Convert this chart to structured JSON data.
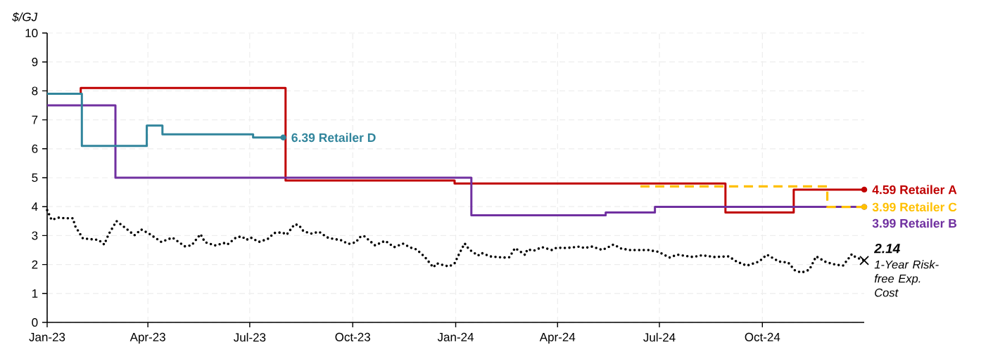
{
  "chart_data": {
    "type": "step",
    "ylabel": "$/GJ",
    "xlim": [
      "2023-01-01",
      "2024-12-31"
    ],
    "ylim": [
      0,
      10
    ],
    "xticks": [
      {
        "value": "2023-01-01",
        "label": "Jan-23"
      },
      {
        "value": "2023-04-01",
        "label": "Apr-23"
      },
      {
        "value": "2023-07-01",
        "label": "Jul-23"
      },
      {
        "value": "2023-10-01",
        "label": "Oct-23"
      },
      {
        "value": "2024-01-01",
        "label": "Jan-24"
      },
      {
        "value": "2024-04-01",
        "label": "Apr-24"
      },
      {
        "value": "2024-07-01",
        "label": "Jul-24"
      },
      {
        "value": "2024-10-01",
        "label": "Oct-24"
      }
    ],
    "yticks": [
      0,
      1,
      2,
      3,
      4,
      5,
      6,
      7,
      8,
      9,
      10
    ],
    "grid": true,
    "series": [
      {
        "name": "1-Year Risk-free Exp. Cost",
        "type": "line",
        "color": "#000000",
        "line_style": "dotted",
        "x": [
          "2023-01-01",
          "2023-01-05",
          "2023-01-11",
          "2023-01-17",
          "2023-01-24",
          "2023-01-26",
          "2023-02-02",
          "2023-02-16",
          "2023-02-21",
          "2023-02-25",
          "2023-03-04",
          "2023-03-11",
          "2023-03-20",
          "2023-03-26",
          "2023-04-02",
          "2023-04-13",
          "2023-04-23",
          "2023-05-04",
          "2023-05-10",
          "2023-05-18",
          "2023-05-22",
          "2023-05-31",
          "2023-06-08",
          "2023-06-11",
          "2023-06-19",
          "2023-06-24",
          "2023-06-28",
          "2023-07-02",
          "2023-07-09",
          "2023-07-17",
          "2023-07-23",
          "2023-07-30",
          "2023-08-03",
          "2023-08-10",
          "2023-08-14",
          "2023-08-18",
          "2023-08-25",
          "2023-09-01",
          "2023-09-08",
          "2023-09-14",
          "2023-09-20",
          "2023-09-27",
          "2023-10-04",
          "2023-10-07",
          "2023-10-11",
          "2023-10-21",
          "2023-10-30",
          "2023-11-07",
          "2023-11-15",
          "2023-11-22",
          "2023-11-27",
          "2023-12-04",
          "2023-12-12",
          "2023-12-15",
          "2023-12-26",
          "2023-12-31",
          "2024-01-04",
          "2024-01-09",
          "2024-01-13",
          "2024-01-21",
          "2024-01-24",
          "2024-02-01",
          "2024-02-13",
          "2024-02-18",
          "2024-02-23",
          "2024-02-28",
          "2024-03-03",
          "2024-03-05",
          "2024-03-11",
          "2024-03-18",
          "2024-03-27",
          "2024-03-31",
          "2024-04-09",
          "2024-04-21",
          "2024-04-25",
          "2024-05-02",
          "2024-05-11",
          "2024-05-21",
          "2024-05-28",
          "2024-06-05",
          "2024-06-21",
          "2024-06-30",
          "2024-07-10",
          "2024-07-17",
          "2024-07-31",
          "2024-08-08",
          "2024-08-19",
          "2024-09-01",
          "2024-09-08",
          "2024-09-17",
          "2024-09-28",
          "2024-10-05",
          "2024-10-16",
          "2024-10-24",
          "2024-10-30",
          "2024-11-05",
          "2024-11-12",
          "2024-11-18",
          "2024-11-27",
          "2024-12-05",
          "2024-12-12",
          "2024-12-20",
          "2024-12-23",
          "2024-12-31"
        ],
        "values": [
          3.88,
          3.54,
          3.62,
          3.6,
          3.6,
          3.33,
          2.9,
          2.85,
          2.69,
          3.05,
          3.5,
          3.29,
          3.01,
          3.21,
          3.07,
          2.78,
          2.93,
          2.63,
          2.66,
          3.05,
          2.77,
          2.66,
          2.74,
          2.69,
          2.94,
          2.97,
          2.85,
          2.93,
          2.78,
          2.88,
          3.09,
          3.11,
          3.03,
          3.39,
          3.36,
          3.15,
          3.07,
          3.13,
          2.94,
          2.88,
          2.85,
          2.71,
          2.77,
          2.94,
          2.99,
          2.66,
          2.82,
          2.6,
          2.72,
          2.58,
          2.52,
          2.28,
          1.9,
          2.04,
          1.93,
          2.04,
          2.36,
          2.73,
          2.52,
          2.31,
          2.4,
          2.28,
          2.24,
          2.25,
          2.57,
          2.44,
          2.33,
          2.52,
          2.48,
          2.6,
          2.5,
          2.58,
          2.57,
          2.62,
          2.57,
          2.62,
          2.5,
          2.69,
          2.55,
          2.5,
          2.5,
          2.44,
          2.24,
          2.34,
          2.26,
          2.32,
          2.26,
          2.28,
          2.1,
          1.96,
          2.1,
          2.34,
          2.1,
          2.07,
          1.8,
          1.72,
          1.82,
          2.28,
          2.08,
          2.0,
          1.96,
          2.36,
          2.26,
          2.14
        ],
        "value_labels": [
          null,
          null,
          null,
          null,
          null,
          null,
          null,
          null,
          null,
          null,
          null,
          null,
          null,
          null,
          null,
          null,
          null,
          null,
          null,
          null,
          null,
          null,
          null,
          null,
          null,
          null,
          null,
          null,
          null,
          null,
          null,
          null,
          null,
          null,
          null,
          null,
          null,
          null,
          null,
          null,
          null,
          null,
          null,
          null,
          null,
          null,
          null,
          null,
          null,
          null,
          null,
          null,
          null,
          null,
          null,
          null,
          null,
          null,
          null,
          null,
          null,
          null,
          null,
          null,
          null,
          null,
          null,
          null,
          null,
          null,
          null,
          null,
          null,
          null,
          null,
          null,
          null,
          null,
          null,
          null,
          null,
          null,
          null,
          null,
          null,
          null,
          null,
          null,
          null,
          null,
          null,
          null,
          null,
          null,
          null,
          null,
          null,
          null,
          null,
          null,
          null,
          null,
          null,
          "2.14"
        ]
      },
      {
        "name": "Retailer A",
        "color": "#c00000",
        "x": [
          "2023-01-01",
          "2023-01-31",
          "2023-08-02",
          "2023-12-31",
          "2024-08-29",
          "2024-10-29",
          "2024-12-31"
        ],
        "values": [
          7.9,
          8.1,
          4.9,
          4.8,
          3.8,
          4.59,
          4.59
        ],
        "value_labels": [
          null,
          null,
          null,
          null,
          null,
          null,
          "4.59"
        ]
      },
      {
        "name": "Retailer B",
        "color": "#7030a0",
        "x": [
          "2023-01-01",
          "2023-03-03",
          "2024-01-15",
          "2024-05-14",
          "2024-06-27",
          "2024-12-31"
        ],
        "values": [
          7.5,
          5.0,
          3.7,
          3.8,
          3.99,
          3.99
        ],
        "value_labels": [
          null,
          null,
          null,
          null,
          null,
          "3.99"
        ]
      },
      {
        "name": "Retailer C",
        "color": "#ffc000",
        "line_style": "dashed",
        "x": [
          "2024-06-14",
          "2024-11-28",
          "2024-12-31"
        ],
        "values": [
          4.7,
          3.99,
          3.99
        ],
        "value_labels": [
          null,
          null,
          "3.99"
        ]
      },
      {
        "name": "Retailer D",
        "color": "#31859c",
        "x": [
          "2023-01-01",
          "2023-02-01",
          "2023-03-31",
          "2023-04-14",
          "2023-07-04",
          "2023-07-31"
        ],
        "values": [
          7.9,
          6.1,
          6.8,
          6.5,
          6.39,
          6.39
        ],
        "value_labels": [
          null,
          null,
          null,
          null,
          null,
          "6.39"
        ]
      }
    ]
  }
}
